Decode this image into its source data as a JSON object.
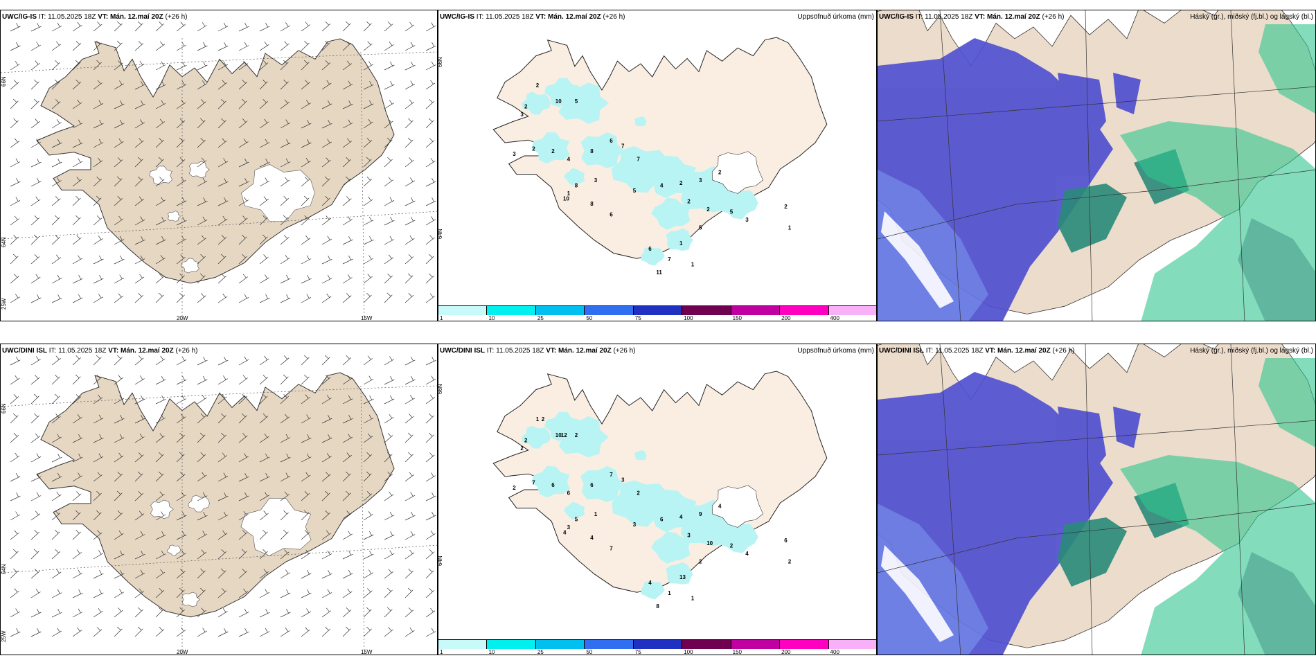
{
  "rows": [
    {
      "model": "UWC/IG-IS",
      "it_label": "IT:",
      "it_value": "11.05.2025 18Z",
      "vt_label": "VT:",
      "vt_value": "Mán. 12.maí 20Z",
      "lead": "(+26 h)"
    },
    {
      "model": "UWC/DINI ISL",
      "it_label": "IT:",
      "it_value": "11.05.2025 18Z",
      "vt_label": "VT:",
      "vt_value": "Mán. 12.maí 20Z",
      "lead": "(+26 h)"
    }
  ],
  "wind_panel": {
    "lat_labels": [
      "66N",
      "64N",
      "25W"
    ],
    "lon_labels": [
      "20W",
      "15W"
    ]
  },
  "precip_panel": {
    "title": "Uppsöfnuð úrkoma (mm)",
    "lat_labels": [
      "66N",
      "64N"
    ],
    "colorbar": {
      "ticks": [
        "1",
        "10",
        "25",
        "50",
        "75",
        "100",
        "150",
        "200",
        "400"
      ],
      "colors": [
        "#c8fafa",
        "#00f0f0",
        "#00c0f0",
        "#3070f0",
        "#2030c0",
        "#700050",
        "#c000a0",
        "#ff00c0",
        "#f8b0f8"
      ]
    },
    "labels_top": [
      "2",
      "10",
      "5",
      "2",
      "3",
      "3",
      "2",
      "2",
      "4",
      "8",
      "6",
      "7",
      "7",
      "3",
      "8",
      "1",
      "10",
      "8",
      "6",
      "5",
      "4",
      "2",
      "3",
      "2",
      "2",
      "2",
      "5",
      "3",
      "2",
      "1",
      "5",
      "1",
      "7",
      "1",
      "6",
      "11"
    ],
    "labels_bottom": [
      "1",
      "10",
      "2",
      "2",
      "2",
      "2",
      "7",
      "6",
      "6",
      "6",
      "7",
      "3",
      "2",
      "1",
      "5",
      "3",
      "4",
      "4",
      "7",
      "3",
      "6",
      "4",
      "9",
      "4",
      "3",
      "10",
      "2",
      "4",
      "6",
      "2",
      "2",
      "13",
      "1",
      "1",
      "4",
      "8",
      "2",
      "12"
    ]
  },
  "cloud_panel": {
    "title": "Háský (gr.), miðský (fj.bl.) og lágský (bl.)",
    "colors": {
      "low": "#5050d0",
      "mid": "#2a8a7a",
      "high": "#30c890",
      "land": "#ecdccb"
    }
  },
  "colors": {
    "land": "#e6d7c3",
    "land_light": "#faeee2",
    "precip_light": "#b8f4f4",
    "ice": "#ffffff"
  }
}
